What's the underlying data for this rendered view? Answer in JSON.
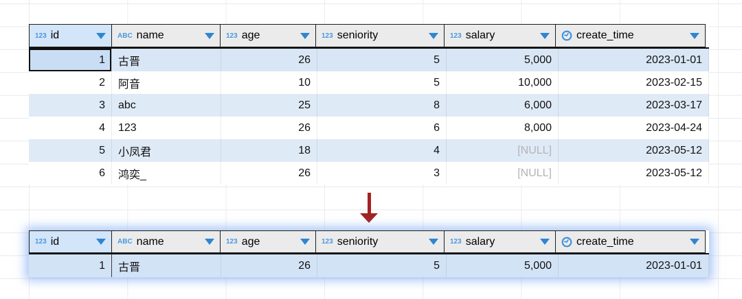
{
  "source_table": {
    "columns": [
      {
        "label": "id",
        "icon": "numeric",
        "icon_text": "123"
      },
      {
        "label": "name",
        "icon": "text",
        "icon_text": "ABC"
      },
      {
        "label": "age",
        "icon": "numeric",
        "icon_text": "123"
      },
      {
        "label": "seniority",
        "icon": "numeric",
        "icon_text": "123"
      },
      {
        "label": "salary",
        "icon": "numeric",
        "icon_text": "123"
      },
      {
        "label": "create_time",
        "icon": "datetime",
        "icon_text": ""
      }
    ],
    "rows": [
      [
        "1",
        "古晋",
        "26",
        "5",
        "5,000",
        "2023-01-01"
      ],
      [
        "2",
        "阿音",
        "10",
        "5",
        "10,000",
        "2023-02-15"
      ],
      [
        "3",
        "abc",
        "25",
        "8",
        "6,000",
        "2023-03-17"
      ],
      [
        "4",
        "123",
        "26",
        "6",
        "8,000",
        "2023-04-24"
      ],
      [
        "5",
        "小凤君",
        "18",
        "4",
        "[NULL]",
        "2023-05-12"
      ],
      [
        "6",
        "鸿奕_",
        "26",
        "3",
        "[NULL]",
        "2023-05-12"
      ]
    ],
    "null_text": "[NULL]"
  },
  "result_table": {
    "rows": [
      [
        "1",
        "古晋",
        "26",
        "5",
        "5,000",
        "2023-01-01"
      ]
    ]
  },
  "colors": {
    "type_icon_blue": "#4a97e2",
    "sort_arrow_blue": "#2e86d2",
    "header_gray": "#ebebeb",
    "header_selected_blue": "#d3e5f8",
    "row_stripe_blue": "#dfeaf7",
    "selected_cell_blue": "#c9def4",
    "result_row_blue": "#d3e3f6",
    "arrow_red": "#a32222",
    "null_gray": "#b4b4b4"
  }
}
